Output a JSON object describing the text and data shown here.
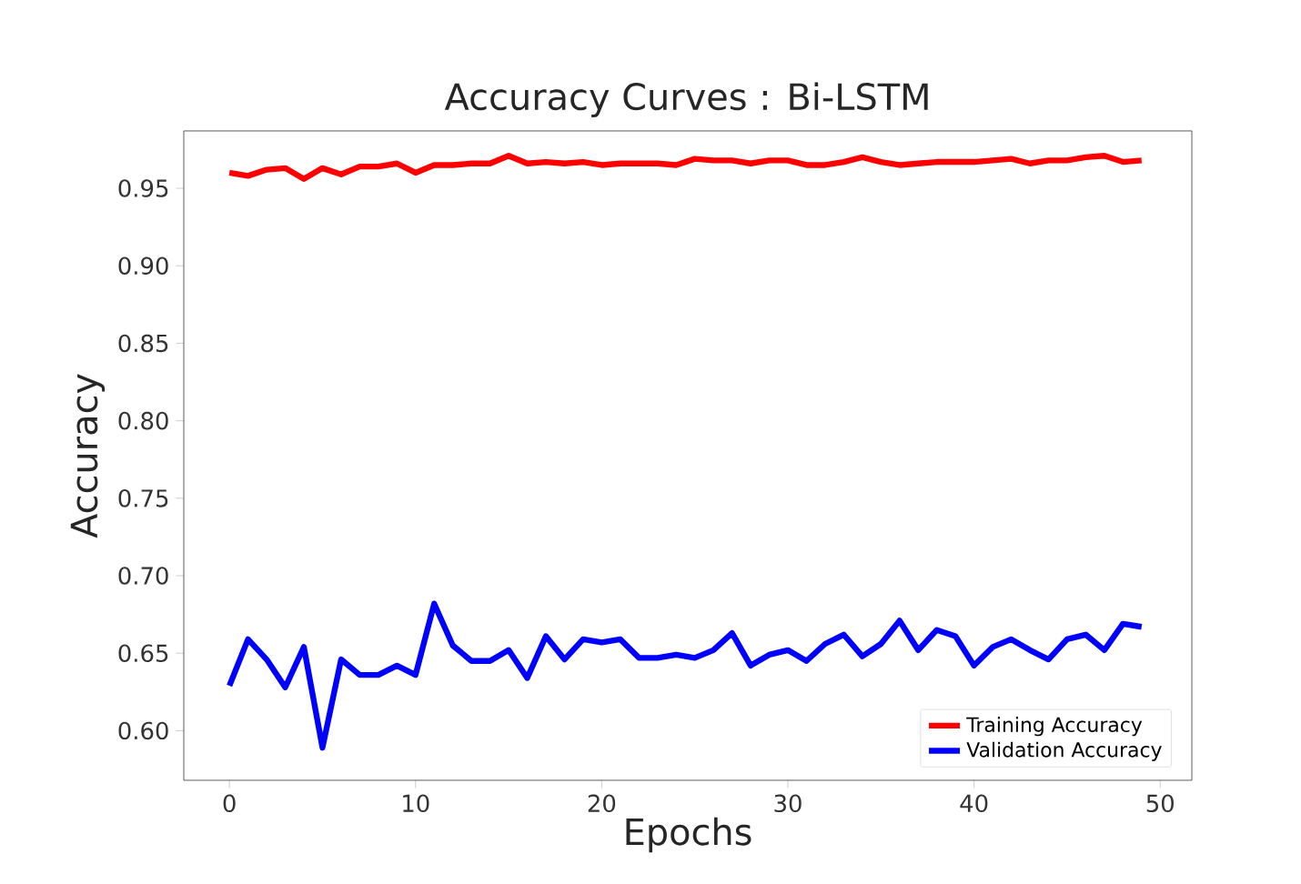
{
  "chart_data": {
    "type": "line",
    "title": "Accuracy Curves : Bi-LSTM",
    "xlabel": "Epochs",
    "ylabel": "Accuracy",
    "x": [
      0,
      1,
      2,
      3,
      4,
      5,
      6,
      7,
      8,
      9,
      10,
      11,
      12,
      13,
      14,
      15,
      16,
      17,
      18,
      19,
      20,
      21,
      22,
      23,
      24,
      25,
      26,
      27,
      28,
      29,
      30,
      31,
      32,
      33,
      34,
      35,
      36,
      37,
      38,
      39,
      40,
      41,
      42,
      43,
      44,
      45,
      46,
      47,
      48,
      49
    ],
    "series": [
      {
        "name": "Training Accuracy",
        "color": "#ff0000",
        "values": [
          0.96,
          0.958,
          0.962,
          0.963,
          0.956,
          0.963,
          0.959,
          0.964,
          0.964,
          0.966,
          0.96,
          0.965,
          0.965,
          0.966,
          0.966,
          0.971,
          0.966,
          0.967,
          0.966,
          0.967,
          0.965,
          0.966,
          0.966,
          0.966,
          0.965,
          0.969,
          0.968,
          0.968,
          0.966,
          0.968,
          0.968,
          0.965,
          0.965,
          0.967,
          0.97,
          0.967,
          0.965,
          0.966,
          0.967,
          0.967,
          0.967,
          0.968,
          0.969,
          0.966,
          0.968,
          0.968,
          0.97,
          0.971,
          0.967,
          0.968
        ]
      },
      {
        "name": "Validation Accuracy",
        "color": "#0000ff",
        "values": [
          0.629,
          0.659,
          0.646,
          0.628,
          0.654,
          0.589,
          0.646,
          0.636,
          0.636,
          0.642,
          0.636,
          0.682,
          0.655,
          0.645,
          0.645,
          0.652,
          0.634,
          0.661,
          0.646,
          0.659,
          0.657,
          0.659,
          0.647,
          0.647,
          0.649,
          0.647,
          0.652,
          0.663,
          0.642,
          0.649,
          0.652,
          0.645,
          0.656,
          0.662,
          0.648,
          0.656,
          0.671,
          0.652,
          0.665,
          0.661,
          0.642,
          0.654,
          0.659,
          0.652,
          0.646,
          0.659,
          0.662,
          0.652,
          0.669,
          0.667
        ]
      }
    ],
    "xlim": [
      -2.45,
      51.7
    ],
    "ylim": [
      0.568,
      0.987
    ],
    "xticks": [
      0,
      10,
      20,
      30,
      40,
      50
    ],
    "yticks": [
      {
        "value": 0.6,
        "label": "0.60"
      },
      {
        "value": 0.65,
        "label": "0.65"
      },
      {
        "value": 0.7,
        "label": "0.70"
      },
      {
        "value": 0.75,
        "label": "0.75"
      },
      {
        "value": 0.8,
        "label": "0.80"
      },
      {
        "value": 0.85,
        "label": "0.85"
      },
      {
        "value": 0.9,
        "label": "0.90"
      },
      {
        "value": 0.95,
        "label": "0.95"
      }
    ],
    "legend": "bottom right",
    "grid": false,
    "marker": "none",
    "line_style": "solid"
  }
}
